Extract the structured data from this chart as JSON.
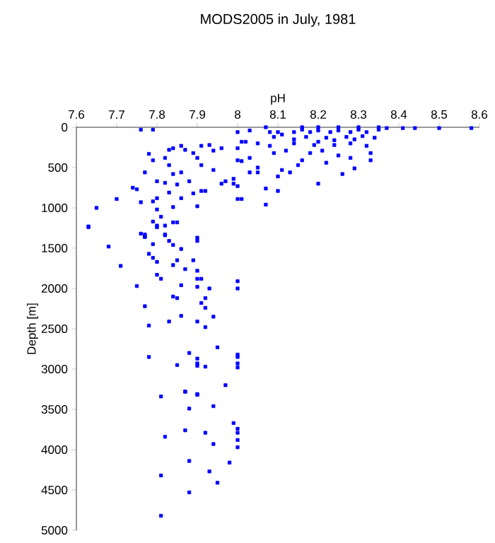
{
  "chart_data": {
    "type": "scatter",
    "title": "MODS2005 in July, 1981",
    "xlabel": "pH",
    "ylabel": "Depth [m]",
    "xlim": [
      7.6,
      8.6
    ],
    "ylim": [
      5000,
      0
    ],
    "xticks": [
      7.6,
      7.7,
      7.8,
      7.9,
      8,
      8.1,
      8.2,
      8.3,
      8.4,
      8.5,
      8.6
    ],
    "yticks": [
      0,
      500,
      1000,
      1500,
      2000,
      2500,
      3000,
      3500,
      4000,
      4500,
      5000
    ],
    "marker": "square",
    "series": [
      {
        "color": "#0000ff",
        "x": [
          7.76,
          7.79,
          8.0,
          8.03,
          8.07,
          8.1,
          8.58,
          8.5,
          8.44,
          8.41,
          8.37,
          7.78,
          7.79,
          7.77,
          7.75,
          7.74,
          7.7,
          7.65,
          7.63,
          7.76,
          7.79,
          7.8,
          7.8,
          7.81,
          7.79,
          7.8,
          7.82,
          7.84,
          7.85,
          7.82,
          7.77,
          7.77,
          7.9,
          7.83,
          7.84,
          7.86,
          7.87,
          7.82,
          7.83,
          7.84,
          7.86,
          7.85,
          7.88,
          7.89,
          7.83,
          7.8,
          7.82,
          7.86,
          7.84,
          7.9,
          7.91,
          7.92,
          7.89,
          7.9,
          7.91,
          7.94,
          7.91,
          7.93,
          7.94,
          7.96,
          7.96,
          7.97,
          7.99,
          7.99,
          8.0,
          8.01,
          8.03,
          8.01,
          8.0,
          8.02,
          8.0,
          8.0,
          8.01,
          8.03,
          8.05,
          8.05,
          8.07,
          8.07,
          8.1,
          8.1,
          8.11,
          8.09,
          8.08,
          8.05,
          8.13,
          8.15,
          8.16,
          8.2,
          8.22,
          8.26,
          8.29,
          8.28,
          8.33,
          8.33,
          8.12,
          8.18,
          8.21,
          8.25,
          8.14,
          8.16,
          8.18,
          8.2,
          8.23,
          8.25,
          8.28,
          8.3,
          8.32,
          8.35,
          8.11,
          8.14,
          8.17,
          8.2,
          8.22,
          8.24,
          8.27,
          8.29,
          8.31,
          8.34,
          8.16,
          8.2,
          8.25,
          8.3,
          8.35,
          8.14,
          8.19,
          8.24,
          8.28,
          8.32,
          8.09,
          8.08,
          7.63,
          7.76,
          7.77,
          7.8,
          7.82,
          7.79,
          7.83,
          7.84,
          7.86,
          7.9,
          7.68,
          7.78,
          7.79,
          7.8,
          7.85,
          7.89,
          7.84,
          7.71,
          7.87,
          7.9,
          7.8,
          7.81,
          7.9,
          7.91,
          8.0,
          8.0,
          7.75,
          7.86,
          7.9,
          7.93,
          7.84,
          7.85,
          7.92,
          7.91,
          7.92,
          7.77,
          7.86,
          7.94,
          7.78,
          7.83,
          7.9,
          7.92,
          7.95,
          8.0,
          8.0,
          8.0,
          8.0,
          7.88,
          7.78,
          7.9,
          7.85,
          7.9,
          7.9,
          7.92,
          7.97,
          7.87,
          7.9,
          7.81,
          7.87,
          7.9,
          7.94,
          7.88,
          7.99,
          8.0,
          8.0,
          7.82,
          7.87,
          7.92,
          8.0,
          7.94,
          8.0,
          7.88,
          7.98,
          7.93,
          7.81,
          7.95,
          7.88,
          7.81
        ],
        "values": [
          30,
          30,
          60,
          40,
          0,
          60,
          10,
          10,
          10,
          10,
          10,
          330,
          410,
          560,
          770,
          750,
          890,
          1000,
          1230,
          930,
          920,
          880,
          1020,
          1110,
          1170,
          1220,
          1220,
          1180,
          1180,
          1340,
          1330,
          1360,
          1370,
          280,
          260,
          230,
          280,
          380,
          470,
          580,
          560,
          710,
          670,
          820,
          810,
          670,
          690,
          880,
          990,
          980,
          790,
          790,
          320,
          380,
          470,
          530,
          230,
          220,
          290,
          260,
          700,
          670,
          640,
          700,
          410,
          420,
          380,
          180,
          260,
          180,
          730,
          890,
          890,
          560,
          500,
          560,
          760,
          960,
          790,
          610,
          530,
          320,
          230,
          200,
          560,
          470,
          410,
          700,
          440,
          580,
          510,
          380,
          410,
          320,
          290,
          320,
          290,
          350,
          60,
          30,
          60,
          40,
          60,
          40,
          60,
          30,
          60,
          30,
          90,
          150,
          120,
          180,
          130,
          160,
          120,
          150,
          110,
          130,
          0,
          0,
          0,
          0,
          0,
          200,
          220,
          220,
          200,
          230,
          120,
          60,
          1240,
          1320,
          1360,
          1240,
          1330,
          1450,
          1410,
          1460,
          1510,
          1410,
          1480,
          1570,
          1620,
          1670,
          1650,
          1650,
          1710,
          1720,
          1760,
          1780,
          1830,
          1880,
          1880,
          1880,
          1910,
          2000,
          1970,
          1960,
          1980,
          2000,
          2100,
          2120,
          2120,
          2180,
          2240,
          2220,
          2340,
          2350,
          2460,
          2410,
          2410,
          2480,
          2730,
          2820,
          2850,
          2930,
          2980,
          2800,
          2850,
          2870,
          2950,
          2930,
          2960,
          2970,
          3200,
          3280,
          3310,
          3340,
          3280,
          3320,
          3460,
          3490,
          3670,
          3740,
          3790,
          3840,
          3760,
          3790,
          3880,
          3930,
          3970,
          4140,
          4160,
          4270,
          4320,
          4410,
          4530,
          4820
        ]
      }
    ]
  }
}
